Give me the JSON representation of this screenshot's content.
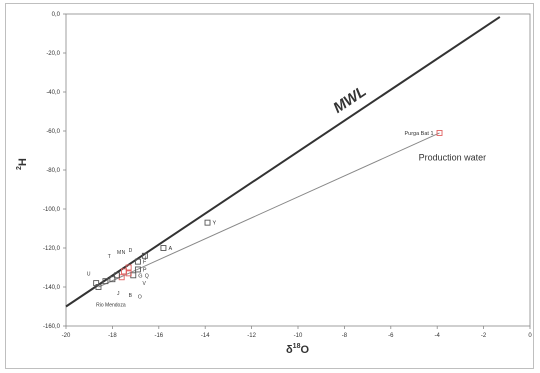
{
  "chart_data": {
    "type": "scatter",
    "xlabel_main": "δ",
    "xlabel_sup": "18",
    "xlabel_end": "O",
    "ylabel_sup": "2",
    "ylabel_end": "H",
    "xlim": [
      -20,
      0
    ],
    "ylim": [
      -160,
      0
    ],
    "x_ticks": [
      "-20",
      "-18",
      "-16",
      "-14",
      "-12",
      "-10",
      "-8",
      "-6",
      "-4",
      "-2",
      "0"
    ],
    "y_ticks": [
      "0,0",
      "-20,0",
      "-40,0",
      "-60,0",
      "-80,0",
      "-100,0",
      "-120,0",
      "-140,0",
      "-160,0"
    ],
    "mwl": {
      "label": "MWL",
      "x1": -20,
      "y1": -150,
      "x2": -1.3,
      "y2": -1.5
    },
    "production_line": {
      "x1": -18.6,
      "y1": -140,
      "x2": -3.9,
      "y2": -61
    },
    "production_label": "Production water",
    "points": [
      {
        "x": -3.9,
        "y": -61,
        "label": "Purga Bat 1",
        "color": "#e06060"
      },
      {
        "x": -13.9,
        "y": -107,
        "label": "Y",
        "color": "#555555"
      },
      {
        "x": -15.8,
        "y": -120,
        "label": "A",
        "color": "#555555"
      },
      {
        "x": -16.6,
        "y": -124,
        "label": "",
        "color": "#555555"
      },
      {
        "x": -16.9,
        "y": -127,
        "label": "F",
        "color": "#555555"
      },
      {
        "x": -16.9,
        "y": -131,
        "label": "P",
        "color": "#555555"
      },
      {
        "x": -17.1,
        "y": -134,
        "label": "G",
        "color": "#555555"
      },
      {
        "x": -17.3,
        "y": -130,
        "label": "",
        "color": "#e06060"
      },
      {
        "x": -17.3,
        "y": -133,
        "label": "",
        "color": "#e06060"
      },
      {
        "x": -17.5,
        "y": -132,
        "label": "",
        "color": "#e06060"
      },
      {
        "x": -17.6,
        "y": -135,
        "label": "",
        "color": "#e06060"
      },
      {
        "x": -17.8,
        "y": -134,
        "label": "",
        "color": "#555555"
      },
      {
        "x": -18.0,
        "y": -136,
        "label": "",
        "color": "#555555"
      },
      {
        "x": -18.3,
        "y": -137,
        "label": "",
        "color": "#555555"
      },
      {
        "x": -18.6,
        "y": -140,
        "label": "",
        "color": "#555555"
      },
      {
        "x": -18.7,
        "y": -138,
        "label": "",
        "color": "#555555"
      }
    ],
    "annotations": [
      {
        "text": "D",
        "x": -17.3,
        "y": -122
      },
      {
        "text": "M",
        "x": -17.8,
        "y": -123
      },
      {
        "text": "N",
        "x": -17.6,
        "y": -123
      },
      {
        "text": "T",
        "x": -18.2,
        "y": -125
      },
      {
        "text": "U",
        "x": -19.1,
        "y": -134
      },
      {
        "text": "J",
        "x": -17.8,
        "y": -144
      },
      {
        "text": "B",
        "x": -17.3,
        "y": -145
      },
      {
        "text": "O",
        "x": -16.9,
        "y": -146
      },
      {
        "text": "V",
        "x": -16.7,
        "y": -139
      },
      {
        "text": "Q",
        "x": -16.6,
        "y": -135
      },
      {
        "text": "I",
        "x": -16.6,
        "y": -126
      },
      {
        "text": "Rio Mendoza",
        "x": -18.7,
        "y": -150
      }
    ]
  }
}
